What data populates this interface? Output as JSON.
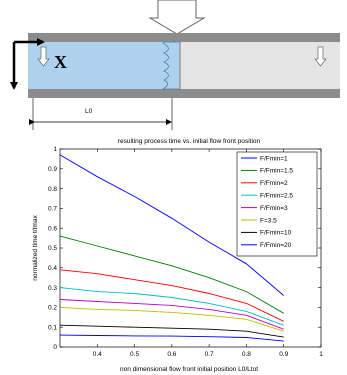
{
  "diagram": {
    "axis_label_x": "X",
    "length_label": "L0"
  },
  "chart_data": {
    "type": "line",
    "title": "resulting process time vs. initial flow front position",
    "xlabel": "non dimensional flow front initial position L0/Ltot",
    "ylabel": "normalized time t/tmax",
    "xlim": [
      0.3,
      1.0
    ],
    "ylim": [
      0,
      1.0
    ],
    "xticks": [
      "0.4",
      "0.5",
      "0.6",
      "0.7",
      "0.8",
      "0.9",
      "1"
    ],
    "yticks": [
      "0",
      "0.1",
      "0.2",
      "0.3",
      "0.4",
      "0.5",
      "0.6",
      "0.7",
      "0.8",
      "0.9",
      "1"
    ],
    "grid": false,
    "legend_position": "top-right",
    "x": [
      0.3,
      0.4,
      0.5,
      0.6,
      0.7,
      0.8,
      0.9
    ],
    "series": [
      {
        "name": "F/Fmin=1",
        "color": "#0000ff",
        "values": [
          0.97,
          0.86,
          0.76,
          0.65,
          0.53,
          0.42,
          0.26
        ]
      },
      {
        "name": "F/Fmin=1.5",
        "color": "#008000",
        "values": [
          0.56,
          0.51,
          0.46,
          0.41,
          0.35,
          0.28,
          0.17
        ]
      },
      {
        "name": "F/Fmin=2",
        "color": "#ff0000",
        "values": [
          0.39,
          0.37,
          0.34,
          0.31,
          0.27,
          0.22,
          0.13
        ]
      },
      {
        "name": "F/Fmin=2.5",
        "color": "#00bfbf",
        "values": [
          0.3,
          0.28,
          0.27,
          0.25,
          0.22,
          0.18,
          0.11
        ]
      },
      {
        "name": "F/Fmin=3",
        "color": "#bf00bf",
        "values": [
          0.24,
          0.23,
          0.22,
          0.21,
          0.19,
          0.16,
          0.09
        ]
      },
      {
        "name": "F=3.5",
        "color": "#bfbf00",
        "values": [
          0.2,
          0.19,
          0.185,
          0.175,
          0.16,
          0.14,
          0.08
        ]
      },
      {
        "name": "F/Fmin=10",
        "color": "#000000",
        "values": [
          0.11,
          0.105,
          0.1,
          0.095,
          0.09,
          0.08,
          0.05
        ]
      },
      {
        "name": "F/Fmin=20",
        "color": "#0000ff",
        "values": [
          0.06,
          0.058,
          0.056,
          0.055,
          0.052,
          0.048,
          0.03
        ]
      }
    ]
  }
}
